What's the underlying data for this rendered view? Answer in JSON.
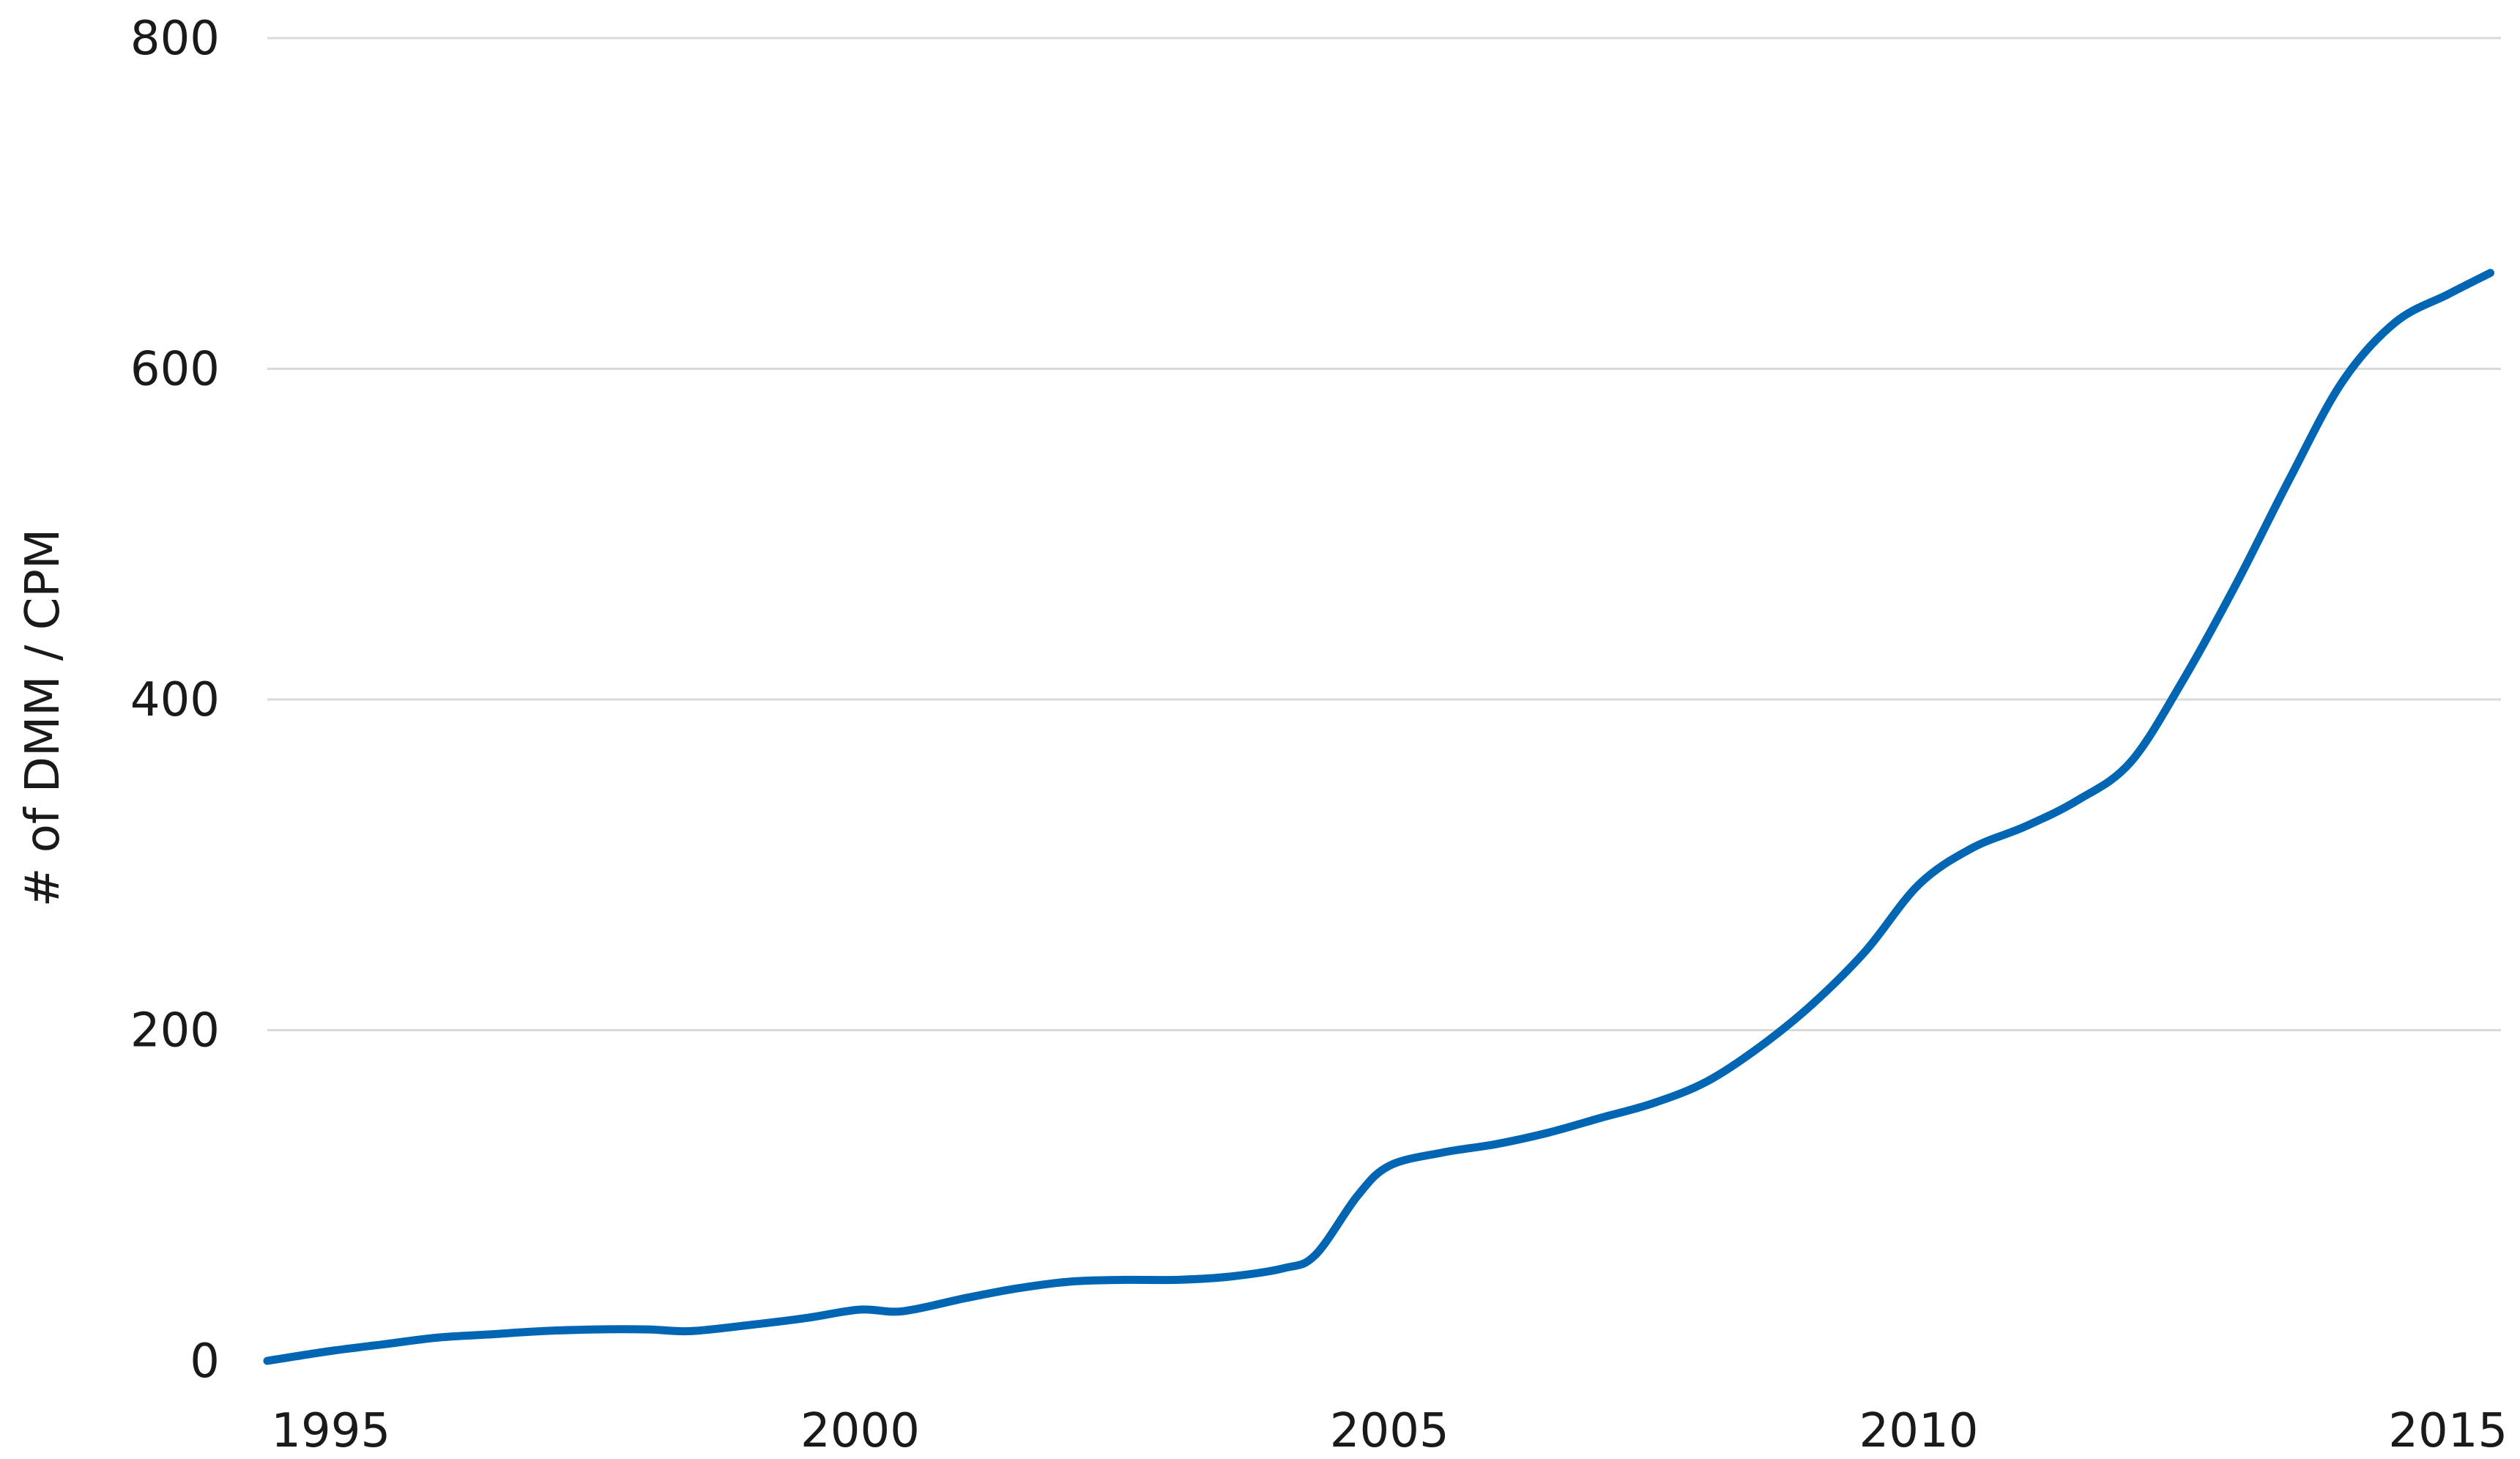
{
  "chart_data": {
    "type": "line",
    "title": "",
    "xlabel": "",
    "ylabel": "# of DMM / CPM",
    "xlim": [
      1994.4,
      2015.5
    ],
    "ylim": [
      0,
      800
    ],
    "x_ticks": [
      1995,
      2000,
      2005,
      2010,
      2015
    ],
    "y_ticks": [
      0,
      200,
      400,
      600,
      800
    ],
    "grid": "horizontal",
    "legend": "none",
    "colors": {
      "series": "#0066b3",
      "grid": "#d9d9d9",
      "text": "#1a1a1a"
    },
    "series": [
      {
        "x": [
          1994.4,
          1995,
          1995.5,
          1996,
          1996.5,
          1997,
          1997.5,
          1998,
          1998.4,
          1999,
          1999.5,
          2000,
          2000.4,
          2001,
          2001.5,
          2002,
          2002.5,
          2003,
          2003.5,
          2004,
          2004.3,
          2004.7,
          2005,
          2005.5,
          2006,
          2006.5,
          2007,
          2007.5,
          2008,
          2008.5,
          2009,
          2009.5,
          2010,
          2010.5,
          2011,
          2011.5,
          2012,
          2012.5,
          2013,
          2013.5,
          2014,
          2014.5,
          2015,
          2015.4
        ],
        "y": [
          0,
          6,
          10,
          14,
          16,
          18,
          19,
          19,
          18,
          22,
          26,
          31,
          30,
          38,
          44,
          48,
          49,
          49,
          51,
          56,
          64,
          100,
          118,
          126,
          131,
          138,
          147,
          156,
          169,
          190,
          216,
          248,
          288,
          310,
          323,
          339,
          362,
          412,
          470,
          533,
          592,
          628,
          645,
          658
        ]
      }
    ]
  }
}
